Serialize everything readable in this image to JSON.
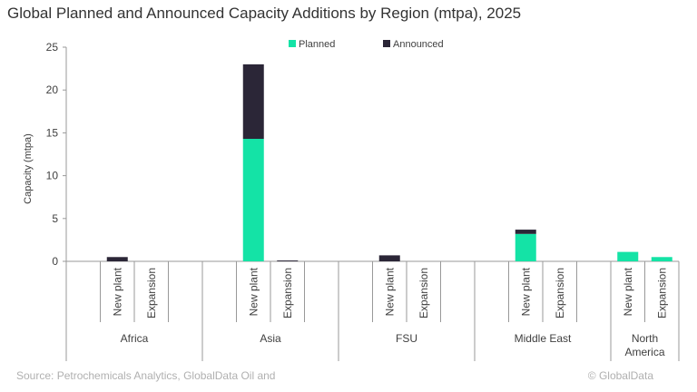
{
  "chart_data": {
    "type": "stacked_bar",
    "title": "Global Planned and Announced Capacity Additions by Region (mtpa), 2025",
    "y_label": "Capacity (mtpa)",
    "categories": [
      null,
      "New plant",
      "Expansion",
      null,
      null,
      "New plant",
      "Expansion",
      null,
      null,
      "New plant",
      "Expansion",
      null,
      null,
      "New plant",
      "Expansion",
      null,
      "New plant",
      "Expansion"
    ],
    "category_groups": [
      "Africa",
      "Africa",
      "Africa",
      "Africa",
      "Asia",
      "Asia",
      "Asia",
      "Asia",
      "FSU",
      "FSU",
      "FSU",
      "FSU",
      "Middle East",
      "Middle East",
      "Middle East",
      "Middle East",
      "North America",
      "North America"
    ],
    "series": [
      {
        "name": "Planned",
        "color": "#14e3a6",
        "values": [
          null,
          0,
          0,
          null,
          null,
          14.3,
          0,
          null,
          null,
          0,
          0,
          null,
          null,
          3.2,
          0,
          null,
          1.1,
          0.5
        ]
      },
      {
        "name": "Announced",
        "color": "#2b2637",
        "values": [
          null,
          0.5,
          0,
          null,
          null,
          8.7,
          0.1,
          null,
          null,
          0.7,
          0,
          null,
          null,
          0.5,
          0,
          null,
          0,
          0
        ]
      }
    ],
    "ylim": [
      0,
      25
    ],
    "yticks": [
      0,
      5,
      10,
      15,
      20,
      25
    ],
    "source": "Source: Petrochemicals Analytics, GlobalData Oil and",
    "credit": "© GlobalData"
  }
}
